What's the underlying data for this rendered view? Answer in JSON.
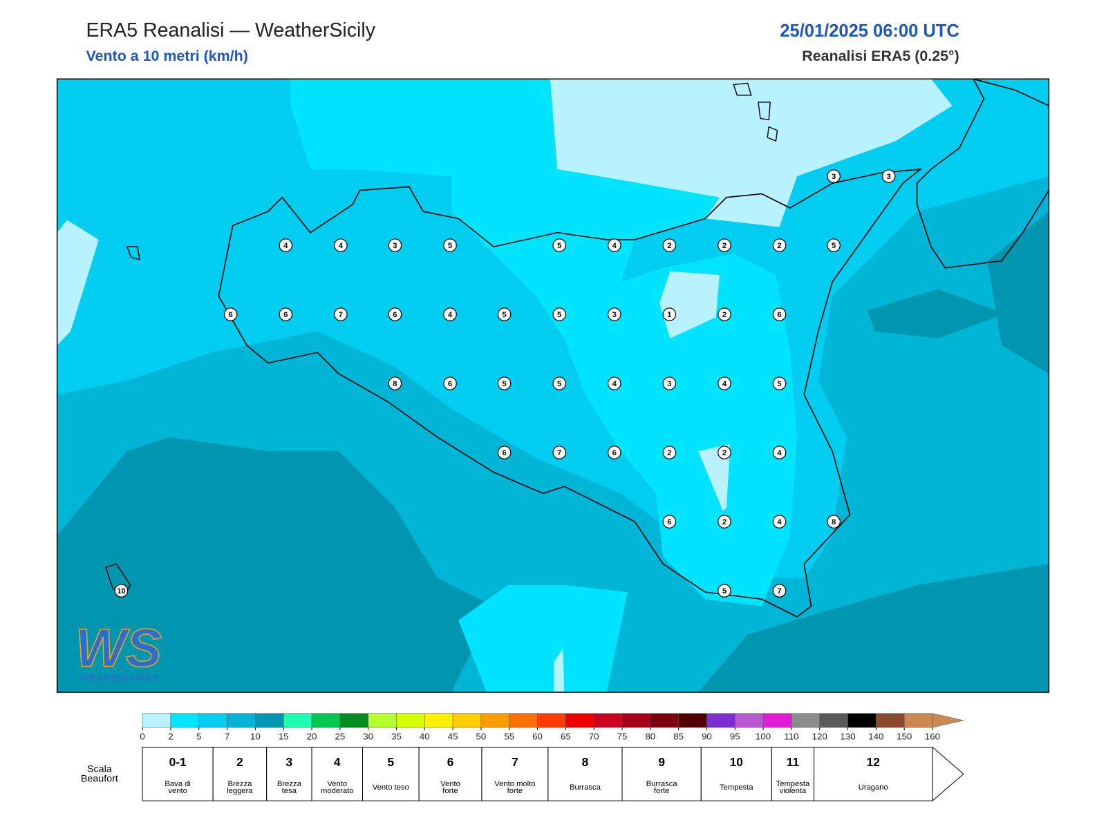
{
  "header": {
    "title": "ERA5 Reanalisi — WeatherSicily",
    "subtitle": "Vento a 10 metri (km/h)",
    "datetime": "25/01/2025 06:00 UTC",
    "source": "Reanalisi ERA5 (0.25°)"
  },
  "map": {
    "stations": [
      3,
      3,
      4,
      4,
      3,
      5,
      5,
      4,
      2,
      2,
      2,
      5,
      6,
      6,
      7,
      6,
      4,
      5,
      5,
      3,
      1,
      2,
      6,
      8,
      6,
      5,
      5,
      4,
      3,
      4,
      5,
      6,
      7,
      6,
      2,
      2,
      4,
      6,
      2,
      4,
      8,
      5,
      7,
      10
    ]
  },
  "logo": {
    "mark": "WS",
    "name": "WEATHER SICILY"
  },
  "colorbar": {
    "ticks": [
      0,
      2,
      5,
      7,
      10,
      15,
      20,
      25,
      30,
      35,
      40,
      45,
      50,
      55,
      60,
      65,
      70,
      75,
      80,
      85,
      90,
      95,
      100,
      110,
      120,
      130,
      140,
      150,
      160
    ],
    "colors": [
      "#b8f2ff",
      "#00e4ff",
      "#00cdf0",
      "#00b5d5",
      "#0096b0",
      "#1affb0",
      "#00c850",
      "#008c1e",
      "#b4ff2d",
      "#d7ff00",
      "#ffef00",
      "#ffcd00",
      "#ff9c00",
      "#ff6e00",
      "#ff3c00",
      "#ee0000",
      "#cc0022",
      "#a80018",
      "#7d000c",
      "#500000",
      "#7c2ed1",
      "#b75ad1",
      "#e01ed8",
      "#8c8c8c",
      "#5a5a5a",
      "#000000",
      "#8b4a2b",
      "#cd8850"
    ]
  },
  "beaufort": {
    "label": [
      "Scala",
      "Beaufort"
    ],
    "levels": [
      {
        "force": "0-1",
        "name": [
          "Bava di",
          "vento"
        ]
      },
      {
        "force": "2",
        "name": [
          "Brezza",
          "leggera"
        ]
      },
      {
        "force": "3",
        "name": [
          "Brezza",
          "tesa"
        ]
      },
      {
        "force": "4",
        "name": [
          "Vento",
          "moderato"
        ]
      },
      {
        "force": "5",
        "name": [
          "Vento teso"
        ]
      },
      {
        "force": "6",
        "name": [
          "Vento",
          "forte"
        ]
      },
      {
        "force": "7",
        "name": [
          "Vento molto",
          "forte"
        ]
      },
      {
        "force": "8",
        "name": [
          "Burrasca"
        ]
      },
      {
        "force": "9",
        "name": [
          "Burrasca",
          "forte"
        ]
      },
      {
        "force": "10",
        "name": [
          "Tempesta"
        ]
      },
      {
        "force": "11",
        "name": [
          "Tempesta",
          "violenta"
        ]
      },
      {
        "force": "12",
        "name": [
          "Uragano"
        ]
      }
    ]
  }
}
